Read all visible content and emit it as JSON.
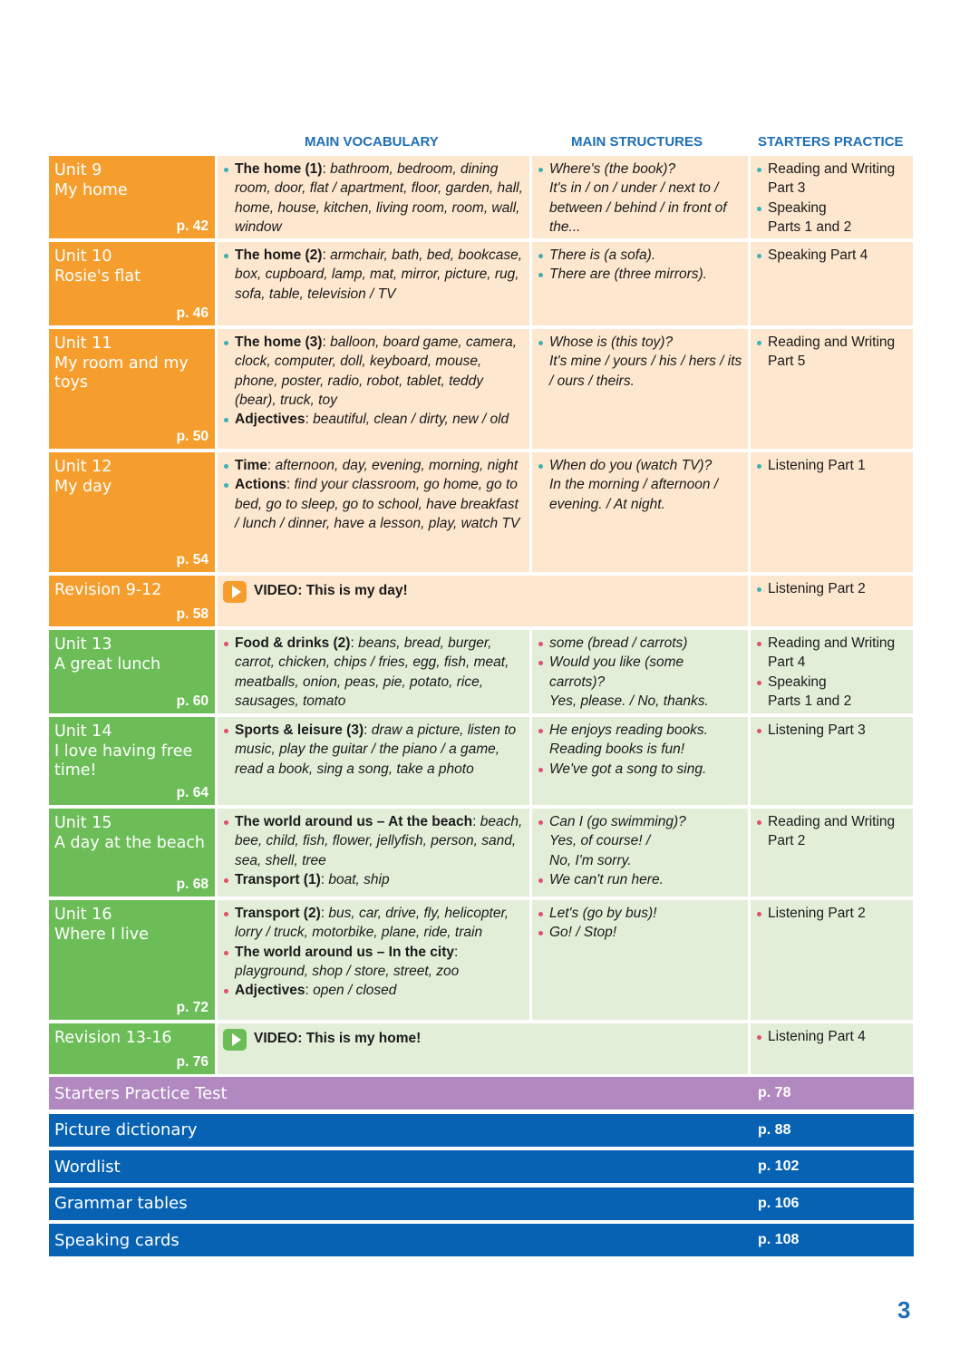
{
  "headers": {
    "vocabulary": "MAIN VOCABULARY",
    "structures": "MAIN STRUCTURES",
    "practice": "STARTERS PRACTICE"
  },
  "colors": {
    "orange": "#f59e2e",
    "orange_light": "#fde7cf",
    "green": "#6cbd58",
    "green_light": "#e3eed9",
    "purple": "#b189c0",
    "blue": "#0762b3",
    "heading_blue": "#1f6fb5"
  },
  "rows": [
    {
      "type": "unit",
      "theme": "o",
      "unit": "Unit 9",
      "title": "My home",
      "page": "p. 42",
      "vocab": [
        {
          "label": "The home (1)",
          "text": "bathroom, bedroom, dining room, door, flat / apartment, floor, garden, hall, home, house, kitchen, living room, room, wall, window"
        }
      ],
      "structures": [
        "Where's (the book)?\nIt's in / on / under / next to / between / behind / in front of the..."
      ],
      "practice": [
        "Reading and Writing\nPart 3",
        "Speaking\nParts 1 and 2"
      ]
    },
    {
      "type": "unit",
      "theme": "o",
      "unit": "Unit 10",
      "title": "Rosie's flat",
      "page": "p. 46",
      "vocab": [
        {
          "label": "The home (2)",
          "text": "armchair, bath, bed, bookcase, box, cupboard, lamp, mat, mirror, picture, rug, sofa, table, television / TV"
        }
      ],
      "structures": [
        "There is (a sofa).",
        "There are (three mirrors)."
      ],
      "practice": [
        "Speaking Part 4"
      ]
    },
    {
      "type": "unit",
      "theme": "o",
      "unit": "Unit 11",
      "title": "My room and my toys",
      "page": "p. 50",
      "vocab": [
        {
          "label": "The home (3)",
          "text": "balloon, board game, camera, clock, computer, doll, keyboard, mouse, phone, poster, radio, robot, tablet, teddy (bear), truck, toy"
        },
        {
          "label": "Adjectives",
          "text": "beautiful, clean / dirty, new / old"
        }
      ],
      "structures": [
        "Whose is (this toy)?\nIt's mine / yours / his / hers / its / ours / theirs."
      ],
      "practice": [
        "Reading and Writing\nPart 5"
      ]
    },
    {
      "type": "unit",
      "theme": "o",
      "unit": "Unit 12",
      "title": "My day",
      "page": "p. 54",
      "vocab": [
        {
          "label": "Time",
          "text": "afternoon, day, evening, morning, night"
        },
        {
          "label": "Actions",
          "text": "find your classroom, go home, go to bed, go to sleep, go to school, have breakfast / lunch / dinner, have a lesson, play, watch TV"
        }
      ],
      "structures": [
        "When do you (watch TV)?\nIn the morning / afternoon / evening. / At night."
      ],
      "practice": [
        "Listening Part 1"
      ]
    },
    {
      "type": "revision",
      "theme": "o",
      "unit": "Revision 9-12",
      "page": "p. 58",
      "video": "VIDEO: This is my day!",
      "practice": [
        "Listening Part 2"
      ]
    },
    {
      "type": "unit",
      "theme": "g",
      "unit": "Unit 13",
      "title": "A great lunch",
      "page": "p. 60",
      "vocab": [
        {
          "label": "Food & drinks (2)",
          "text": "beans, bread, burger, carrot, chicken, chips / fries, egg, fish, meat, meatballs, onion, peas, pie, potato, rice, sausages, tomato"
        }
      ],
      "structures": [
        "some (bread / carrots)",
        "Would you like (some carrots)?\nYes, please. / No, thanks."
      ],
      "practice": [
        "Reading and Writing\nPart 4",
        "Speaking\nParts 1 and 2"
      ]
    },
    {
      "type": "unit",
      "theme": "g",
      "unit": "Unit 14",
      "title": "I love having free time!",
      "page": "p. 64",
      "vocab": [
        {
          "label": "Sports & leisure (3)",
          "text": "draw a picture, listen to music, play the guitar / the piano / a game, read a book, sing a song, take a photo"
        }
      ],
      "structures": [
        "He enjoys reading books.\nReading books is fun!",
        "We've got a song to sing."
      ],
      "practice": [
        "Listening Part 3"
      ]
    },
    {
      "type": "unit",
      "theme": "g",
      "unit": "Unit 15",
      "title": "A day at the beach",
      "page": "p. 68",
      "vocab": [
        {
          "label": "The world around us – At the beach",
          "text": "beach, bee, child, fish, flower, jellyfish, person, sand, sea, shell, tree"
        },
        {
          "label": "Transport (1)",
          "text": "boat, ship"
        }
      ],
      "structures": [
        "Can I (go swimming)?\nYes, of course! /\nNo, I'm sorry.",
        "We can't run here."
      ],
      "practice": [
        "Reading and Writing\nPart 2"
      ]
    },
    {
      "type": "unit",
      "theme": "g",
      "unit": "Unit 16",
      "title": "Where I live",
      "page": "p. 72",
      "vocab": [
        {
          "label": "Transport (2)",
          "text": "bus, car, drive, fly, helicopter, lorry / truck, motorbike, plane, ride, train"
        },
        {
          "label": "The world around us – In the city",
          "text": "playground, shop / store, street, zoo"
        },
        {
          "label": "Adjectives",
          "text": "open / closed"
        }
      ],
      "structures": [
        "Let's (go by bus)!",
        "Go! / Stop!"
      ],
      "practice": [
        "Listening Part 2"
      ]
    },
    {
      "type": "revision",
      "theme": "g",
      "unit": "Revision 13-16",
      "page": "p. 76",
      "video": "VIDEO: This is my home!",
      "practice": [
        "Listening Part 4"
      ]
    }
  ],
  "sections": [
    {
      "title": "Starters Practice Test",
      "page": "p. 78",
      "color": "#b189c0"
    },
    {
      "title": "Picture dictionary",
      "page": "p. 88",
      "color": "#0762b3"
    },
    {
      "title": "Wordlist",
      "page": "p. 102",
      "color": "#0762b3"
    },
    {
      "title": "Grammar tables",
      "page": "p. 106",
      "color": "#0762b3"
    },
    {
      "title": "Speaking cards",
      "page": "p. 108",
      "color": "#0762b3"
    }
  ],
  "page_number": "3"
}
